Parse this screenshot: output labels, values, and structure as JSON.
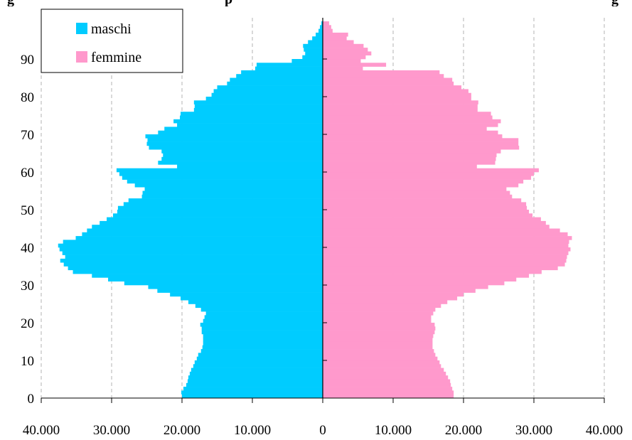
{
  "title_fragments": [
    "g",
    "p",
    "g"
  ],
  "chart_data": {
    "type": "bar",
    "orientation": "horizontal",
    "layout": "population-pyramid",
    "title": "",
    "xlabel": "",
    "ylabel": "",
    "xlim": [
      -40000,
      40000
    ],
    "ylim": [
      0,
      100
    ],
    "x_ticks": [
      -40000,
      -30000,
      -20000,
      -10000,
      0,
      10000,
      20000,
      30000,
      40000
    ],
    "x_tick_labels": [
      "40.000",
      "30.000",
      "20.000",
      "10.000",
      "0",
      "10.000",
      "20.000",
      "30.000",
      "40.000"
    ],
    "y_ticks": [
      0,
      10,
      20,
      30,
      40,
      50,
      60,
      70,
      80,
      90
    ],
    "y_tick_labels": [
      "0",
      "10",
      "20",
      "30",
      "40",
      "50",
      "60",
      "70",
      "80",
      "90"
    ],
    "grid": "vertical dashed",
    "legend_position": "top-left",
    "categories": [
      0,
      1,
      2,
      3,
      4,
      5,
      6,
      7,
      8,
      9,
      10,
      11,
      12,
      13,
      14,
      15,
      16,
      17,
      18,
      19,
      20,
      21,
      22,
      23,
      24,
      25,
      26,
      27,
      28,
      29,
      30,
      31,
      32,
      33,
      34,
      35,
      36,
      37,
      38,
      39,
      40,
      41,
      42,
      43,
      44,
      45,
      46,
      47,
      48,
      49,
      50,
      51,
      52,
      53,
      54,
      55,
      56,
      57,
      58,
      59,
      60,
      61,
      62,
      63,
      64,
      65,
      66,
      67,
      68,
      69,
      70,
      71,
      72,
      73,
      74,
      75,
      76,
      77,
      78,
      79,
      80,
      81,
      82,
      83,
      84,
      85,
      86,
      87,
      88,
      89,
      90,
      91,
      92,
      93,
      94,
      95,
      96,
      97,
      98,
      99
    ],
    "series": [
      {
        "name": "maschi",
        "color": "#00ccff",
        "side": "left",
        "values": [
          20000,
          20100,
          19800,
          19400,
          19200,
          19100,
          18900,
          18700,
          18400,
          18200,
          17900,
          17700,
          17300,
          17100,
          17000,
          17000,
          17000,
          17200,
          17200,
          17400,
          17000,
          16800,
          16600,
          17300,
          18100,
          19100,
          20200,
          21700,
          23500,
          24800,
          28200,
          30500,
          32800,
          35500,
          36200,
          36800,
          37300,
          36600,
          37000,
          37400,
          37600,
          36900,
          35100,
          34200,
          33500,
          32800,
          31700,
          30700,
          29800,
          29200,
          29100,
          28300,
          27600,
          25700,
          25600,
          25300,
          26700,
          27800,
          28500,
          28900,
          29300,
          20700,
          23400,
          22900,
          22700,
          22900,
          24700,
          25000,
          24900,
          25200,
          23400,
          22500,
          20700,
          21200,
          20300,
          20200,
          18300,
          18200,
          18300,
          16600,
          15800,
          15500,
          15000,
          13600,
          13200,
          12300,
          11600,
          9600,
          9400,
          4400,
          2900,
          2500,
          2700,
          2800,
          2100,
          1500,
          1000,
          600,
          400,
          200
        ]
      },
      {
        "name": "femmine",
        "color": "#ff99cc",
        "side": "right",
        "values": [
          18600,
          18600,
          18400,
          18200,
          18100,
          17800,
          17500,
          17200,
          16800,
          16600,
          16300,
          16000,
          15800,
          15600,
          15600,
          15600,
          15700,
          15900,
          16000,
          15900,
          15400,
          15400,
          15700,
          16000,
          16800,
          17700,
          19100,
          20000,
          21700,
          23500,
          25800,
          27500,
          29300,
          31100,
          33400,
          34400,
          34600,
          34700,
          34900,
          35200,
          34900,
          35000,
          35400,
          34800,
          33700,
          32200,
          31700,
          31000,
          29800,
          29300,
          29000,
          28900,
          28200,
          26900,
          26600,
          26100,
          27800,
          28500,
          29600,
          30000,
          30700,
          21900,
          24500,
          24600,
          24700,
          25300,
          27900,
          27800,
          27800,
          25500,
          24900,
          23300,
          24900,
          25300,
          24100,
          23900,
          22000,
          22000,
          22100,
          21100,
          21100,
          20700,
          19700,
          18600,
          18400,
          17200,
          16600,
          5700,
          9000,
          5400,
          6100,
          6900,
          6400,
          5800,
          4400,
          3400,
          3600,
          1400,
          1200,
          900
        ]
      }
    ]
  }
}
